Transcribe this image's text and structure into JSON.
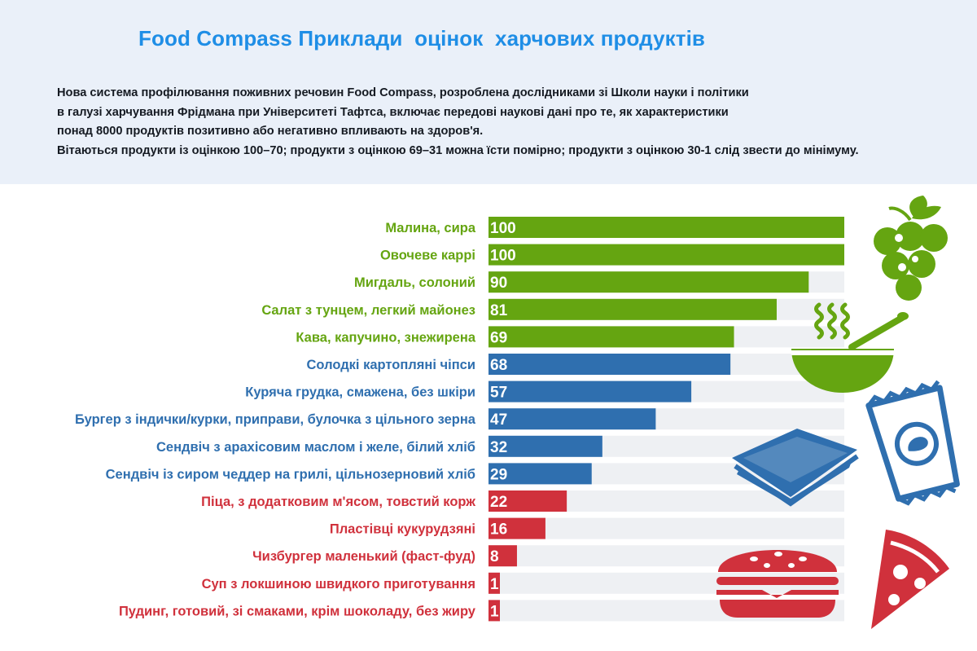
{
  "title": "Food Compass Приклади  оцінок  харчових продуктів",
  "intro_lines": [
    "Нова система профілювання поживних речовин Food Compass, розроблена дослідниками зі Школи науки і політики",
    "в галузі харчування Фрідмана при Університеті Тафтса, включає передові наукові дані про те, як характеристики",
    "понад 8000 продуктів позитивно або негативно впливають на здоров'я.",
    "Вітаються продукти із оцінкою 100–70; продукти з оцінкою 69–31 можна їсти помірно; продукти з оцінкою 30-1 слід звести до мінімуму."
  ],
  "colors": {
    "header_bg": "#eaf0f9",
    "title": "#1f8ee6",
    "green": "#65a511",
    "blue": "#2f6faf",
    "red": "#d0313c",
    "track": "#eef0f3"
  },
  "icons": [
    "grapes-icon",
    "soup-bowl-icon",
    "chips-bag-icon",
    "sandwich-icon",
    "burger-icon",
    "pizza-slice-icon"
  ],
  "chart_data": {
    "type": "bar",
    "orientation": "horizontal",
    "xlim": [
      0,
      100
    ],
    "grid": false,
    "legend": "none",
    "categories": [
      "Малина, сира",
      "Овочеве каррі",
      "Мигдаль, солоний",
      "Салат з тунцем, легкий майонез",
      "Кава, капучино, знежирена",
      "Солодкі картопляні чіпси",
      "Куряча грудка, смажена, без шкіри",
      "Бургер з індички/курки, приправи, булочка з цільного зерна",
      "Сендвіч з арахісовим маслом і желе, білий хліб",
      "Сендвіч із сиром чеддер на грилі, цільнозерновий хліб",
      "Піца, з додатковим м'ясом, товстий корж",
      "Пластівці кукурудзяні",
      "Чизбургер маленький (фаст-фуд)",
      "Суп з локшиною швидкого приготування",
      "Пудинг, готовий, зі смаками, крім шоколаду, без жиру"
    ],
    "values": [
      100,
      100,
      90,
      81,
      69,
      68,
      57,
      47,
      32,
      29,
      22,
      16,
      8,
      1,
      1
    ],
    "value_labels": [
      "100",
      "100",
      "90",
      "81",
      "69",
      "68",
      "57",
      "47",
      "32",
      "29",
      "22",
      "16",
      "8",
      "1",
      "1"
    ],
    "groups": [
      "green",
      "green",
      "green",
      "green",
      "green",
      "blue",
      "blue",
      "blue",
      "blue",
      "blue",
      "red",
      "red",
      "red",
      "red",
      "red"
    ]
  }
}
